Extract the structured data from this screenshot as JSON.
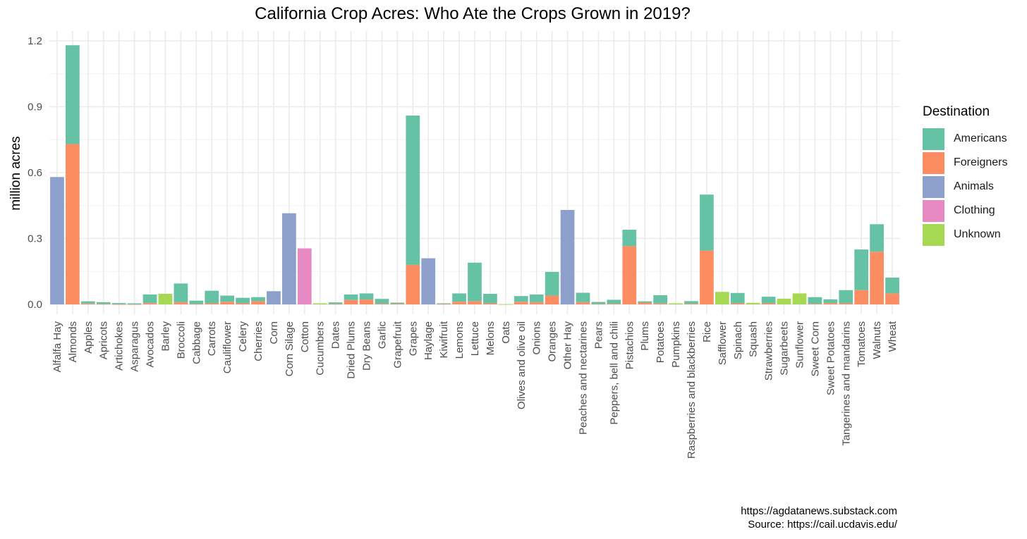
{
  "chart_data": {
    "type": "bar",
    "stacked": true,
    "title": "California Crop Acres: Who Ate the Crops Grown in 2019?",
    "ylabel": "million acres",
    "xlabel": "",
    "ylim": [
      0,
      1.25
    ],
    "yticks": [
      0.0,
      0.3,
      0.6,
      0.9,
      1.2
    ],
    "ytick_labels": [
      "0.0",
      "0.3",
      "0.6",
      "0.9",
      "1.2"
    ],
    "grid": true,
    "legend_title": "Destination",
    "legend_position": "right",
    "categories": [
      "Alfalfa Hay",
      "Almonds",
      "Apples",
      "Apricots",
      "Artichokes",
      "Asparagus",
      "Avocados",
      "Barley",
      "Broccoli",
      "Cabbage",
      "Carrots",
      "Cauliflower",
      "Celery",
      "Cherries",
      "Corn",
      "Corn Silage",
      "Cotton",
      "Cucumbers",
      "Dates",
      "Dried Plums",
      "Dry Beans",
      "Garlic",
      "Grapefruit",
      "Grapes",
      "Haylage",
      "Kiwifruit",
      "Lemons",
      "Lettuce",
      "Melons",
      "Oats",
      "Olives and olive oil",
      "Onions",
      "Oranges",
      "Other Hay",
      "Peaches and nectarines",
      "Pears",
      "Peppers, bell and chili",
      "Pistachios",
      "Plums",
      "Potatoes",
      "Pumpkins",
      "Raspberries and blackberries",
      "Rice",
      "Safflower",
      "Spinach",
      "Squash",
      "Strawberries",
      "Sugarbeets",
      "Sunflower",
      "Sweet Corn",
      "Sweet Potatoes",
      "Tangerines and mandarins",
      "Tomatoes",
      "Walnuts",
      "Wheat"
    ],
    "series": [
      {
        "name": "Foreigners",
        "color": "#FC8D62",
        "values": [
          0,
          0.73,
          0.004,
          0.002,
          0.001,
          0.001,
          0.006,
          0,
          0.01,
          0.002,
          0.005,
          0.012,
          0.005,
          0.015,
          0,
          0,
          0,
          0,
          0.002,
          0.02,
          0.022,
          0.003,
          0.003,
          0.18,
          0,
          0.002,
          0.012,
          0.015,
          0.005,
          0,
          0.012,
          0.01,
          0.04,
          0,
          0.01,
          0.002,
          0.003,
          0.265,
          0.008,
          0.004,
          0,
          0.003,
          0.245,
          0,
          0.005,
          0,
          0.005,
          0,
          0,
          0.003,
          0.006,
          0.005,
          0.065,
          0.24,
          0.05
        ]
      },
      {
        "name": "Americans",
        "color": "#66C2A5",
        "values": [
          0,
          0.45,
          0.01,
          0.008,
          0.005,
          0.004,
          0.039,
          0,
          0.085,
          0.015,
          0.057,
          0.028,
          0.025,
          0.018,
          0,
          0,
          0,
          0,
          0.007,
          0.025,
          0.028,
          0.022,
          0.005,
          0.68,
          0,
          0.003,
          0.038,
          0.175,
          0.043,
          0,
          0.026,
          0.035,
          0.108,
          0,
          0.043,
          0.009,
          0.018,
          0.075,
          0.006,
          0.038,
          0,
          0.012,
          0.255,
          0,
          0.047,
          0,
          0.03,
          0,
          0,
          0.03,
          0.017,
          0.06,
          0.185,
          0.125,
          0.072
        ]
      },
      {
        "name": "Animals",
        "color": "#8DA0CB",
        "values": [
          0.58,
          0,
          0,
          0,
          0,
          0,
          0,
          0,
          0,
          0,
          0,
          0,
          0,
          0,
          0.06,
          0.415,
          0,
          0,
          0,
          0,
          0,
          0,
          0,
          0,
          0.21,
          0,
          0,
          0,
          0,
          0,
          0,
          0,
          0,
          0.43,
          0,
          0,
          0,
          0,
          0,
          0,
          0,
          0,
          0,
          0,
          0,
          0,
          0,
          0,
          0,
          0,
          0,
          0,
          0,
          0,
          0
        ]
      },
      {
        "name": "Clothing",
        "color": "#E78AC3",
        "values": [
          0,
          0,
          0,
          0,
          0,
          0,
          0,
          0,
          0,
          0,
          0,
          0,
          0,
          0,
          0,
          0,
          0.255,
          0,
          0,
          0,
          0,
          0,
          0,
          0,
          0,
          0,
          0,
          0,
          0,
          0,
          0,
          0,
          0,
          0,
          0,
          0,
          0,
          0,
          0,
          0,
          0,
          0,
          0,
          0,
          0,
          0,
          0,
          0,
          0,
          0,
          0,
          0,
          0,
          0,
          0
        ]
      },
      {
        "name": "Unknown",
        "color": "#A6D854",
        "values": [
          0,
          0,
          0,
          0,
          0,
          0,
          0,
          0.048,
          0,
          0,
          0,
          0,
          0,
          0,
          0,
          0,
          0,
          0.005,
          0,
          0,
          0,
          0,
          0,
          0,
          0,
          0,
          0,
          0,
          0,
          0.001,
          0,
          0,
          0,
          0,
          0,
          0,
          0,
          0,
          0,
          0,
          0.005,
          0,
          0,
          0.057,
          0,
          0.007,
          0,
          0.026,
          0.05,
          0,
          0,
          0,
          0,
          0,
          0
        ]
      }
    ]
  },
  "legend": {
    "title": "Destination",
    "items": [
      {
        "label": "Americans",
        "color": "#66C2A5"
      },
      {
        "label": "Foreigners",
        "color": "#FC8D62"
      },
      {
        "label": "Animals",
        "color": "#8DA0CB"
      },
      {
        "label": "Clothing",
        "color": "#E78AC3"
      },
      {
        "label": "Unknown",
        "color": "#A6D854"
      }
    ]
  },
  "caption": {
    "line1": "https://agdatanews.substack.com",
    "line2": "Source: https://cail.ucdavis.edu/"
  }
}
